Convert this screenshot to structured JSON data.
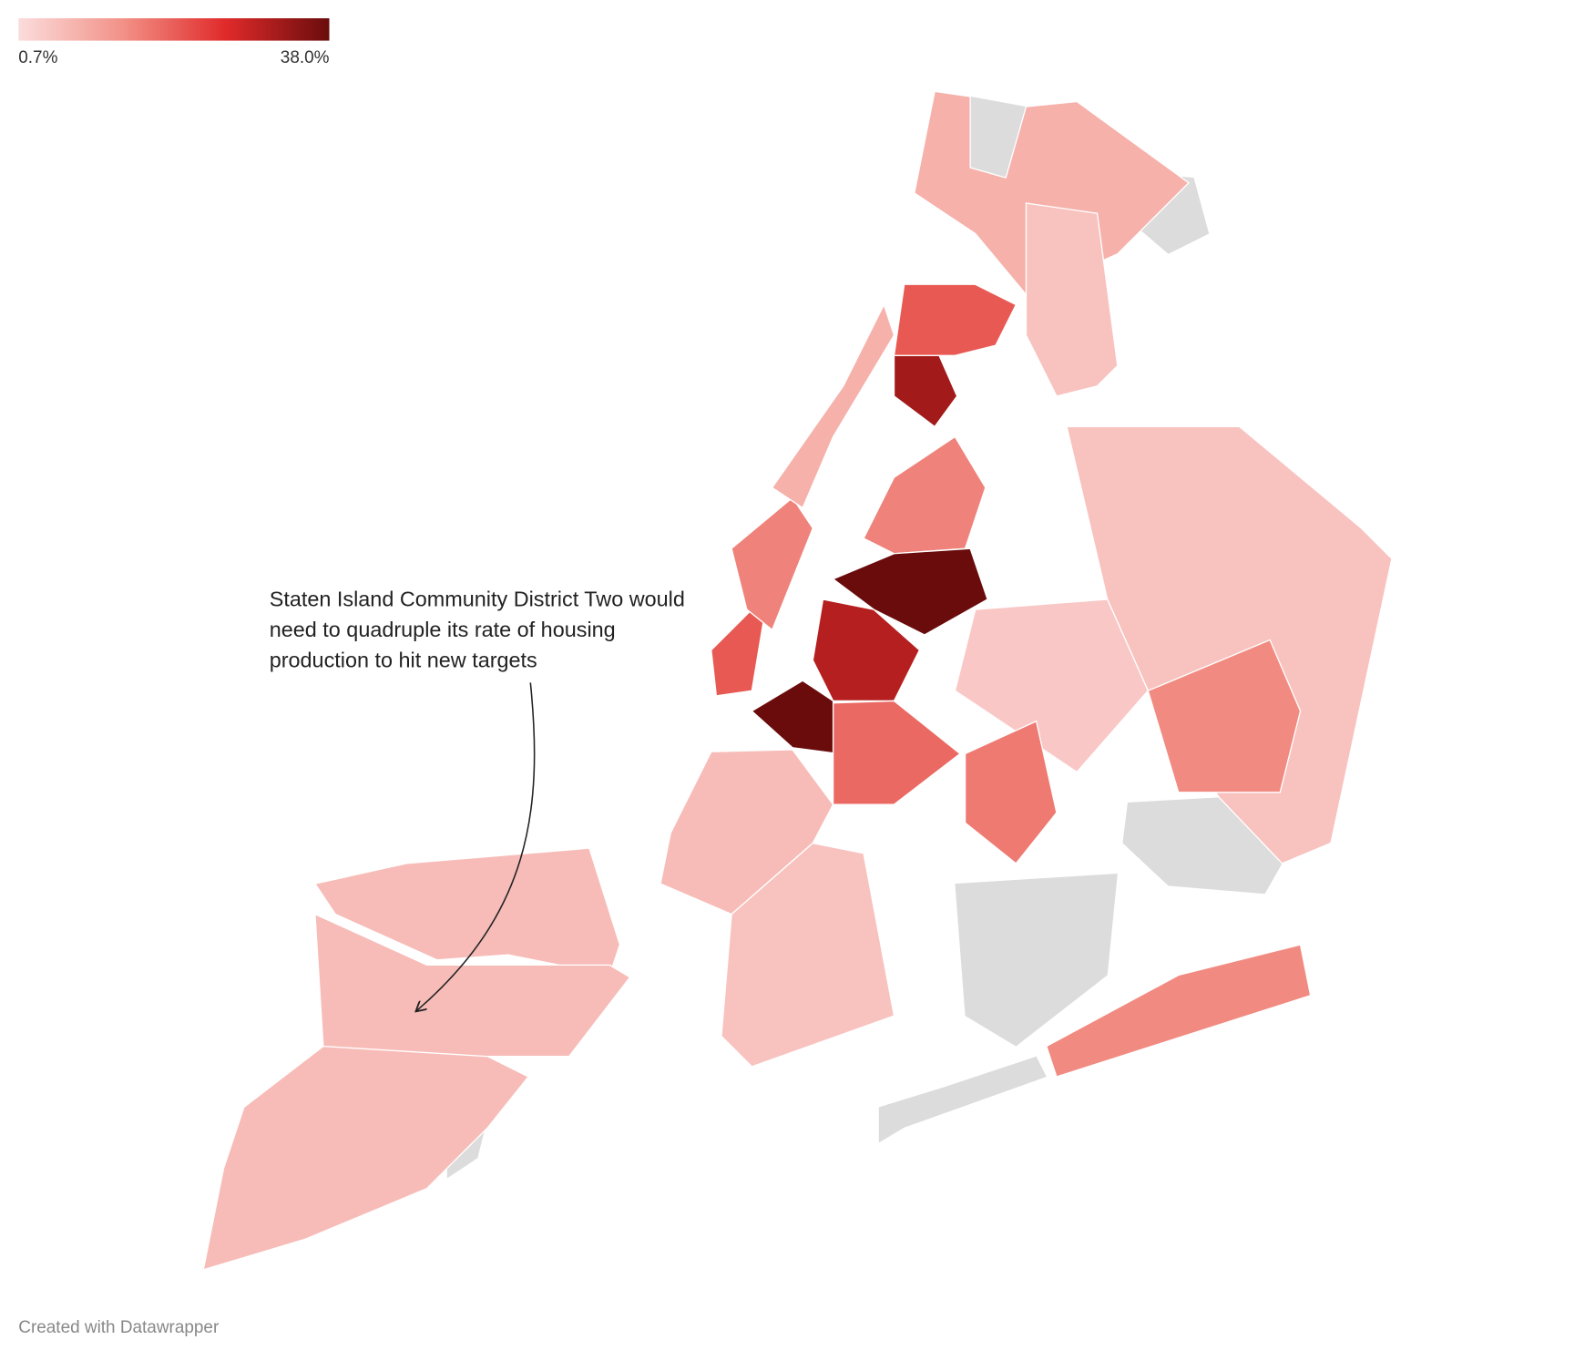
{
  "chart_data": {
    "type": "choropleth",
    "values": [
      6,
      6,
      6,
      20,
      15,
      8,
      32,
      20,
      8,
      5,
      15,
      38,
      30,
      38,
      18,
      6,
      5,
      5,
      4,
      14,
      16,
      14
    ],
    "colors": [
      "#fbdcdc",
      "#f29288",
      "#e02a2a",
      "#6a0c0c"
    ],
    "clim": [
      0.7,
      38.0
    ],
    "cticks": [
      {
        "value": 0.7,
        "label": "0.7%"
      },
      {
        "value": 38.0,
        "label": "38.0%"
      }
    ],
    "annotation": [
      "Staten Island Community District Two would",
      "need to quadruple its rate of housing",
      "production to hit new targets"
    ],
    "credit": "Created with Datawrapper"
  }
}
